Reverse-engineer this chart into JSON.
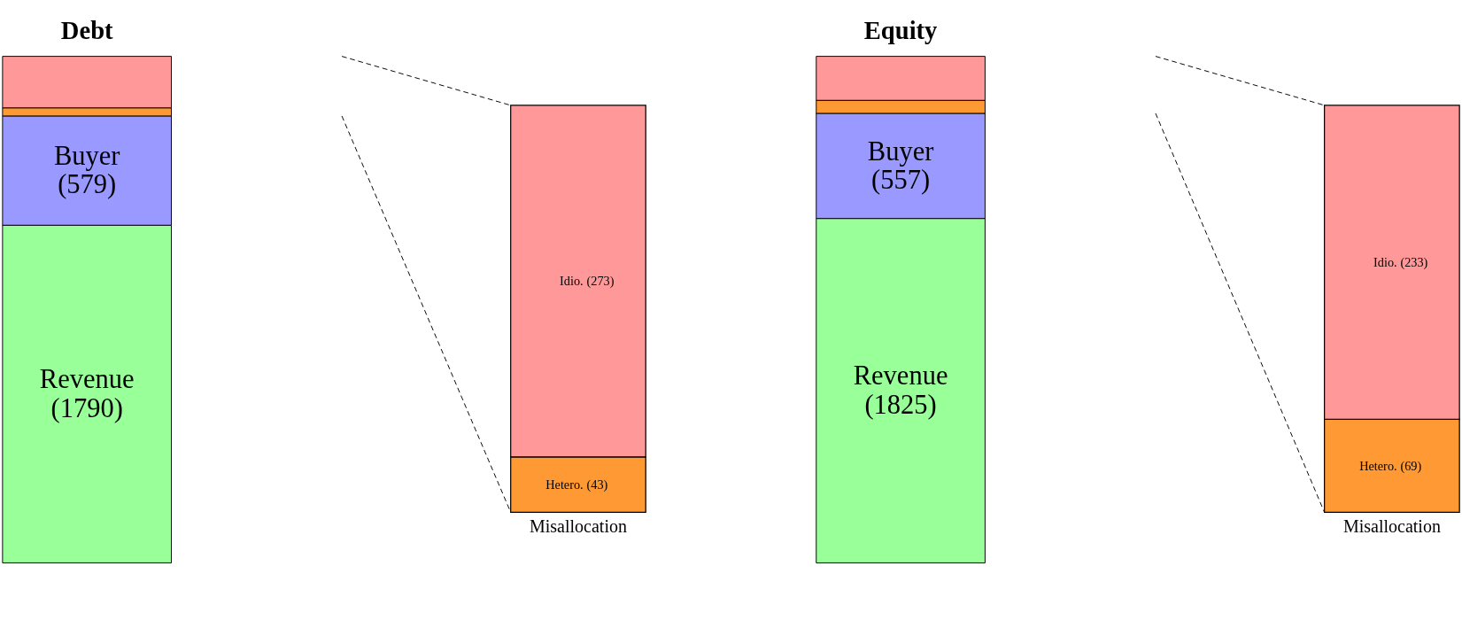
{
  "chart_data": [
    {
      "type": "bar",
      "stacked": true,
      "title": "Debt",
      "categories": [
        null
      ],
      "series": [
        {
          "name": "Revenue",
          "color": "#99ff99",
          "values": [
            1790
          ],
          "value_labels": [
            "(1790)"
          ]
        },
        {
          "name": "Buyer",
          "color": "#9999ff",
          "values": [
            579
          ],
          "value_labels": [
            "(579)"
          ]
        },
        {
          "color": "#ff9933",
          "values": [
            43
          ]
        },
        {
          "color": "#ff9999",
          "values": [
            273
          ]
        }
      ]
    },
    {
      "type": "bar",
      "stacked": true,
      "categories": [
        "Misallocation"
      ],
      "series": [
        {
          "name": "Hetero.",
          "color": "#ff9933",
          "values": [
            43
          ],
          "value_labels": [
            "(43)"
          ]
        },
        {
          "name": "Idio.",
          "color": "#ff9999",
          "values": [
            273
          ],
          "value_labels": [
            "(273)"
          ]
        }
      ]
    },
    {
      "type": "bar",
      "stacked": true,
      "title": "Equity",
      "categories": [
        null
      ],
      "series": [
        {
          "name": "Revenue",
          "color": "#99ff99",
          "values": [
            1825
          ],
          "value_labels": [
            "(1825)"
          ]
        },
        {
          "name": "Buyer",
          "color": "#9999ff",
          "values": [
            557
          ],
          "value_labels": [
            "(557)"
          ]
        },
        {
          "color": "#ff9933",
          "values": [
            69
          ]
        },
        {
          "color": "#ff9999",
          "values": [
            233
          ]
        }
      ]
    },
    {
      "type": "bar",
      "stacked": true,
      "categories": [
        "Misallocation"
      ],
      "series": [
        {
          "name": "Hetero.",
          "color": "#ff9933",
          "values": [
            69
          ],
          "value_labels": [
            "(69)"
          ]
        },
        {
          "name": "Idio.",
          "color": "#ff9999",
          "values": [
            233
          ],
          "value_labels": [
            "(233)"
          ]
        }
      ]
    }
  ]
}
